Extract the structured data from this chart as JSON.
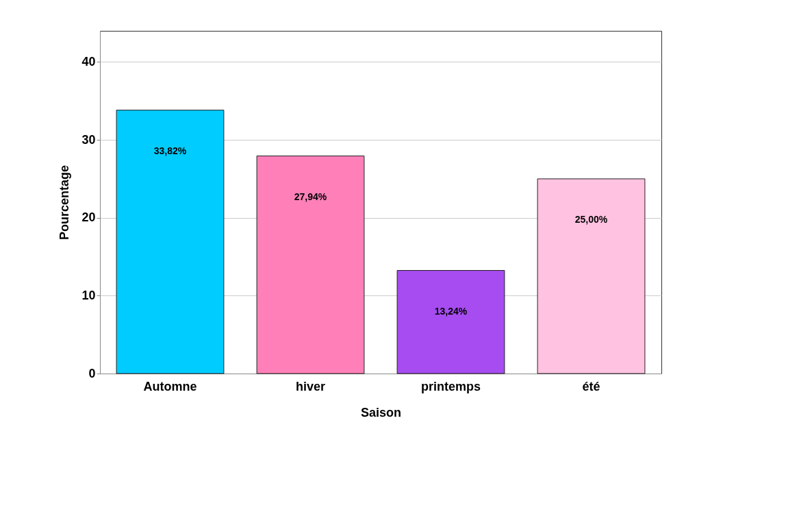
{
  "chart_data": {
    "type": "bar",
    "xlabel": "Saison",
    "ylabel": "Pourcentage",
    "categories": [
      "Automne",
      "hiver",
      "printemps",
      "été"
    ],
    "values": [
      33.82,
      27.94,
      13.24,
      25.0
    ],
    "colors": [
      "#00ccff",
      "#ff80b8",
      "#a64cf0",
      "#ffc2e0"
    ],
    "value_labels": [
      "33,82%",
      "27,94%",
      "13,24%",
      "25,00%"
    ],
    "ylim": [
      0,
      44
    ],
    "yticks": [
      0,
      10,
      20,
      30,
      40
    ],
    "grid": "y"
  }
}
